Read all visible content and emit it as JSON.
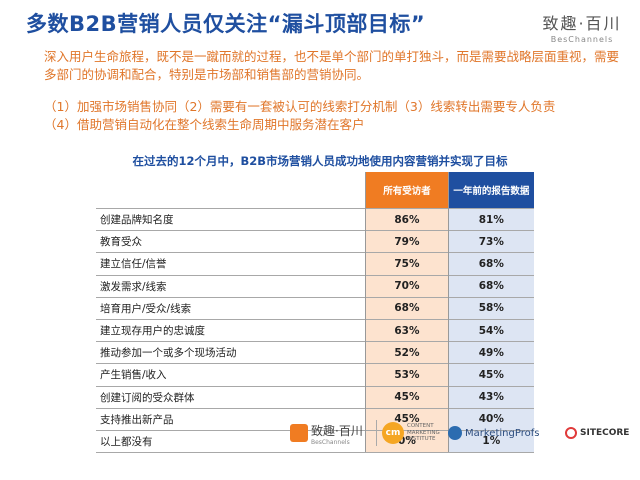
{
  "header": {
    "title": "多数B2B营销人员仅关注“漏斗顶部目标”",
    "brand_cn": "致趣·百川",
    "brand_en": "BesChannels"
  },
  "intro": {
    "paragraph": "深入用户生命旅程，既不是一蹴而就的过程，也不是单个部门的单打独斗，而是需要战略层面重视，需要多部门的协调和配合，特别是市场部和销售部的营销协同。",
    "points_line1": "（1）加强市场销售协同（2）需要有一套被认可的线索打分机制（3）线索转出需要专人负责",
    "points_line2": "（4）借助营销自动化在整个线索生命周期中服务潜在客户"
  },
  "table": {
    "subtitle": "在过去的12个月中，B2B市场营销人员成功地使用内容营销并实现了目标",
    "col1_header": "所有受访者",
    "col2_header": "一年前的报告数据",
    "rows": [
      {
        "label": "创建品牌知名度",
        "all": "86%",
        "prev": "81%"
      },
      {
        "label": "教育受众",
        "all": "79%",
        "prev": "73%"
      },
      {
        "label": "建立信任/信誉",
        "all": "75%",
        "prev": "68%"
      },
      {
        "label": "激发需求/线索",
        "all": "70%",
        "prev": "68%"
      },
      {
        "label": "培育用户/受众/线索",
        "all": "68%",
        "prev": "58%"
      },
      {
        "label": "建立现存用户的忠诚度",
        "all": "63%",
        "prev": "54%"
      },
      {
        "label": "推动参加一个或多个现场活动",
        "all": "52%",
        "prev": "49%"
      },
      {
        "label": "产生销售/收入",
        "all": "53%",
        "prev": "45%"
      },
      {
        "label": "创建订阅的受众群体",
        "all": "45%",
        "prev": "43%"
      },
      {
        "label": "支持推出新产品",
        "all": "45%",
        "prev": "40%"
      },
      {
        "label": "以上都没有",
        "all": "0%",
        "prev": "1%"
      }
    ]
  },
  "footer": {
    "beschannels_cn": "致趣·百川",
    "beschannels_en": "BesChannels",
    "cmi_mark": "cm",
    "cmi_text": "CONTENT MARKETING INSTITUTE",
    "marketingprofs": "MarketingProfs",
    "sitecore": "SITECORE"
  }
}
